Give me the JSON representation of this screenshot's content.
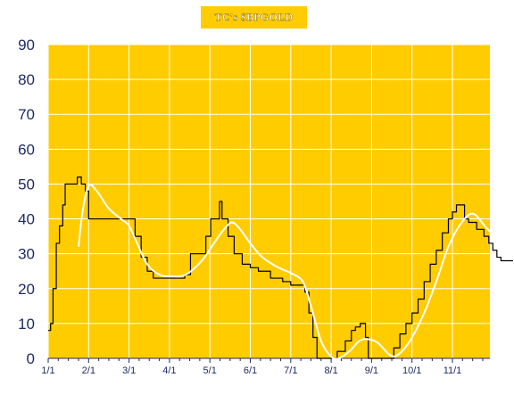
{
  "chart_data": {
    "type": "line",
    "title": "TC's $BPGOLD",
    "ylim": [
      0,
      90
    ],
    "yticks": [
      0,
      10,
      20,
      30,
      40,
      50,
      60,
      70,
      80,
      90
    ],
    "xticks": [
      "1/1",
      "2/1",
      "3/1",
      "4/1",
      "5/1",
      "6/1",
      "7/1",
      "8/1",
      "9/1",
      "10/1",
      "11/1"
    ],
    "grid": true,
    "colors": {
      "background": "#ffcc00",
      "grid": "#ffffff",
      "series_1": "#000000",
      "series_2": "#ffffff"
    },
    "series": [
      {
        "style": "step",
        "points": [
          [
            0,
            8
          ],
          [
            0.06,
            10
          ],
          [
            0.12,
            20
          ],
          [
            0.2,
            33
          ],
          [
            0.28,
            38
          ],
          [
            0.36,
            44
          ],
          [
            0.42,
            50
          ],
          [
            0.6,
            50
          ],
          [
            0.72,
            52
          ],
          [
            0.82,
            50
          ],
          [
            0.92,
            48
          ],
          [
            1.0,
            40
          ],
          [
            1.3,
            40
          ],
          [
            1.6,
            40
          ],
          [
            1.95,
            40
          ],
          [
            2.15,
            35
          ],
          [
            2.3,
            29
          ],
          [
            2.45,
            25
          ],
          [
            2.6,
            23
          ],
          [
            2.9,
            23
          ],
          [
            3.2,
            23
          ],
          [
            3.38,
            24
          ],
          [
            3.52,
            30
          ],
          [
            3.8,
            30
          ],
          [
            3.9,
            35
          ],
          [
            4.02,
            40
          ],
          [
            4.18,
            40
          ],
          [
            4.24,
            45
          ],
          [
            4.3,
            40
          ],
          [
            4.45,
            35
          ],
          [
            4.6,
            30
          ],
          [
            4.8,
            27
          ],
          [
            5.0,
            26
          ],
          [
            5.2,
            25
          ],
          [
            5.5,
            23
          ],
          [
            5.8,
            22
          ],
          [
            6.0,
            21
          ],
          [
            6.2,
            21
          ],
          [
            6.35,
            19
          ],
          [
            6.45,
            13
          ],
          [
            6.55,
            6
          ],
          [
            6.65,
            0
          ],
          [
            7.02,
            0
          ],
          [
            7.15,
            2
          ],
          [
            7.35,
            5
          ],
          [
            7.5,
            8
          ],
          [
            7.6,
            9
          ],
          [
            7.72,
            10
          ],
          [
            7.85,
            6
          ],
          [
            7.92,
            0
          ],
          [
            8.45,
            0
          ],
          [
            8.55,
            3
          ],
          [
            8.7,
            7
          ],
          [
            8.85,
            10
          ],
          [
            9.0,
            13
          ],
          [
            9.15,
            17
          ],
          [
            9.3,
            22
          ],
          [
            9.45,
            27
          ],
          [
            9.6,
            31
          ],
          [
            9.75,
            36
          ],
          [
            9.9,
            40
          ],
          [
            10.0,
            42
          ],
          [
            10.1,
            44
          ],
          [
            10.3,
            40
          ],
          [
            10.4,
            39
          ],
          [
            10.6,
            37
          ],
          [
            10.78,
            35
          ],
          [
            10.9,
            33
          ],
          [
            11.0,
            31
          ],
          [
            11.1,
            29
          ],
          [
            11.2,
            28
          ],
          [
            11.5,
            28
          ]
        ]
      },
      {
        "style": "smooth",
        "points": [
          [
            0.75,
            32
          ],
          [
            0.85,
            42
          ],
          [
            1.0,
            49.5
          ],
          [
            1.2,
            48
          ],
          [
            1.5,
            43
          ],
          [
            1.8,
            40
          ],
          [
            2.0,
            38
          ],
          [
            2.2,
            33
          ],
          [
            2.45,
            27
          ],
          [
            2.75,
            24
          ],
          [
            3.05,
            23.5
          ],
          [
            3.4,
            24
          ],
          [
            3.8,
            28
          ],
          [
            4.1,
            33
          ],
          [
            4.35,
            37
          ],
          [
            4.55,
            39
          ],
          [
            4.75,
            37
          ],
          [
            5.0,
            33
          ],
          [
            5.3,
            29
          ],
          [
            5.7,
            26
          ],
          [
            6.0,
            24.5
          ],
          [
            6.3,
            22
          ],
          [
            6.5,
            15
          ],
          [
            6.75,
            5
          ],
          [
            7.0,
            0.5
          ],
          [
            7.2,
            0
          ],
          [
            7.45,
            2
          ],
          [
            7.7,
            5
          ],
          [
            7.9,
            5.5
          ],
          [
            8.15,
            4.5
          ],
          [
            8.45,
            1
          ],
          [
            8.65,
            1
          ],
          [
            8.95,
            5
          ],
          [
            9.3,
            13
          ],
          [
            9.6,
            22
          ],
          [
            9.9,
            32
          ],
          [
            10.2,
            38.5
          ],
          [
            10.5,
            41.5
          ],
          [
            10.8,
            38
          ],
          [
            11.1,
            34
          ],
          [
            11.35,
            31
          ],
          [
            11.5,
            30.5
          ]
        ]
      }
    ]
  }
}
